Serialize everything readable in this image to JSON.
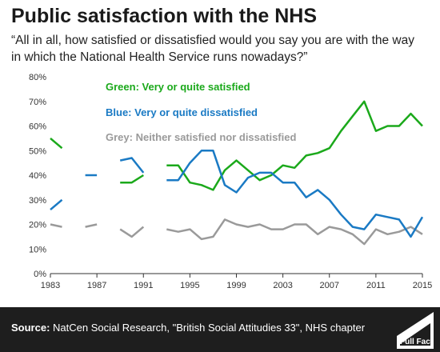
{
  "title": "Public satisfaction with the NHS",
  "question": "“All in all, how satisfied or dissatisfied would you say you are with the way in which the National Health Service runs nowadays?”",
  "footer": {
    "source_label": "Source:",
    "source_text": "NatCen Social Research, \"British Social Attitudies 33\", NHS chapter",
    "logo_text": "Full Fact"
  },
  "colors": {
    "green": "#1ba91b",
    "blue": "#1a7ac4",
    "grey": "#9a9a9a",
    "axis": "#333333",
    "footer": "#1e1e1e"
  },
  "chart_data": {
    "type": "line",
    "xlim": [
      1983,
      2015
    ],
    "ylim": [
      0,
      80
    ],
    "x_ticks": [
      "1983",
      "1987",
      "1991",
      "1995",
      "1999",
      "2003",
      "2007",
      "2011",
      "2015"
    ],
    "y_ticks": [
      "0%",
      "10%",
      "20%",
      "30%",
      "40%",
      "50%",
      "60%",
      "70%",
      "80%"
    ],
    "grid": false,
    "legend_position": "inside-top-left",
    "series": [
      {
        "name": "Green: Very or quite satisfied",
        "color": "#1ba91b",
        "segments": [
          [
            [
              1983,
              55
            ],
            [
              1984,
              51
            ]
          ],
          [
            [
              1989,
              37
            ],
            [
              1990,
              37
            ],
            [
              1991,
              40
            ]
          ],
          [
            [
              1993,
              44
            ],
            [
              1994,
              44
            ],
            [
              1995,
              37
            ],
            [
              1996,
              36
            ],
            [
              1997,
              34
            ],
            [
              1998,
              42
            ],
            [
              1999,
              46
            ],
            [
              2000,
              42
            ],
            [
              2001,
              38
            ],
            [
              2002,
              40
            ],
            [
              2003,
              44
            ],
            [
              2004,
              43
            ],
            [
              2005,
              48
            ],
            [
              2006,
              49
            ],
            [
              2007,
              51
            ],
            [
              2008,
              58
            ],
            [
              2009,
              64
            ],
            [
              2010,
              70
            ],
            [
              2011,
              58
            ],
            [
              2012,
              60
            ],
            [
              2013,
              60
            ],
            [
              2014,
              65
            ],
            [
              2015,
              60
            ]
          ]
        ]
      },
      {
        "name": "Blue: Very or quite dissatisfied",
        "color": "#1a7ac4",
        "segments": [
          [
            [
              1983,
              26
            ],
            [
              1984,
              30
            ]
          ],
          [
            [
              1986,
              40
            ],
            [
              1987,
              40
            ]
          ],
          [
            [
              1989,
              46
            ],
            [
              1990,
              47
            ],
            [
              1991,
              41
            ]
          ],
          [
            [
              1993,
              38
            ],
            [
              1994,
              38
            ],
            [
              1995,
              45
            ],
            [
              1996,
              50
            ],
            [
              1997,
              50
            ],
            [
              1998,
              36
            ],
            [
              1999,
              33
            ],
            [
              2000,
              39
            ],
            [
              2001,
              41
            ],
            [
              2002,
              41
            ],
            [
              2003,
              37
            ],
            [
              2004,
              37
            ],
            [
              2005,
              31
            ],
            [
              2006,
              34
            ],
            [
              2007,
              30
            ],
            [
              2008,
              24
            ],
            [
              2009,
              19
            ],
            [
              2010,
              18
            ],
            [
              2011,
              24
            ],
            [
              2012,
              23
            ],
            [
              2013,
              22
            ],
            [
              2014,
              15
            ],
            [
              2015,
              23
            ]
          ]
        ]
      },
      {
        "name": "Grey: Neither satisfied nor dissatisfied",
        "color": "#9a9a9a",
        "segments": [
          [
            [
              1983,
              20
            ],
            [
              1984,
              19
            ]
          ],
          [
            [
              1986,
              19
            ],
            [
              1987,
              20
            ]
          ],
          [
            [
              1989,
              18
            ],
            [
              1990,
              15
            ],
            [
              1991,
              19
            ]
          ],
          [
            [
              1993,
              18
            ],
            [
              1994,
              17
            ],
            [
              1995,
              18
            ],
            [
              1996,
              14
            ],
            [
              1997,
              15
            ],
            [
              1998,
              22
            ],
            [
              1999,
              20
            ],
            [
              2000,
              19
            ],
            [
              2001,
              20
            ],
            [
              2002,
              18
            ],
            [
              2003,
              18
            ],
            [
              2004,
              20
            ],
            [
              2005,
              20
            ],
            [
              2006,
              16
            ],
            [
              2007,
              19
            ],
            [
              2008,
              18
            ],
            [
              2009,
              16
            ],
            [
              2010,
              12
            ],
            [
              2011,
              18
            ],
            [
              2012,
              16
            ],
            [
              2013,
              17
            ],
            [
              2014,
              19
            ],
            [
              2015,
              16
            ]
          ]
        ]
      }
    ]
  }
}
